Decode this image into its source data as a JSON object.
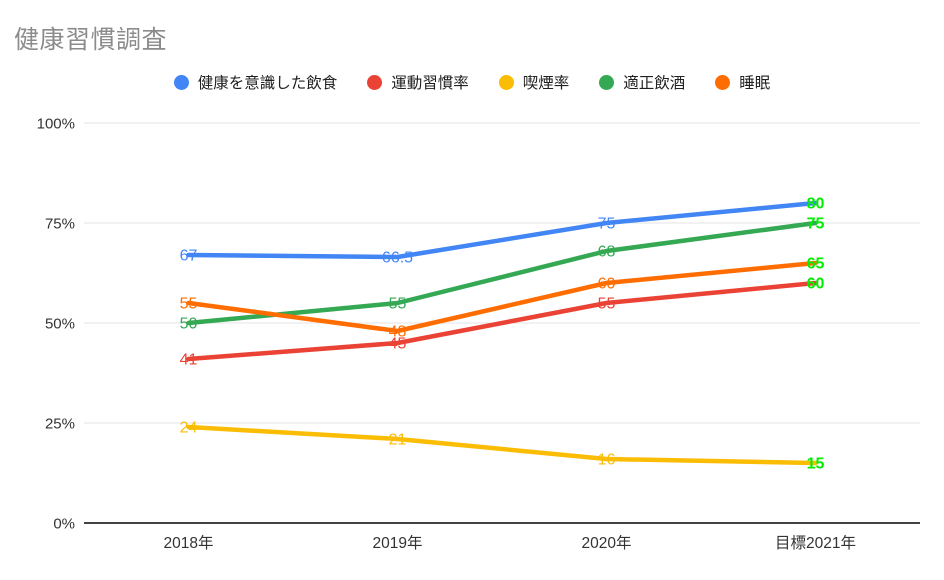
{
  "title": "健康習慣調査",
  "chart_data": {
    "type": "line",
    "title": "健康習慣調査",
    "categories": [
      "2018年",
      "2019年",
      "2020年",
      "目標2021年"
    ],
    "series": [
      {
        "name": "健康を意識した飲食",
        "color": "#4285F4",
        "values": [
          67,
          66.5,
          75,
          80
        ]
      },
      {
        "name": "運動習慣率",
        "color": "#EA4335",
        "values": [
          41,
          45,
          55,
          60
        ]
      },
      {
        "name": "喫煙率",
        "color": "#FBBC04",
        "values": [
          24,
          21,
          16,
          15
        ]
      },
      {
        "name": "適正飲酒",
        "color": "#34A853",
        "values": [
          50,
          55,
          68,
          75
        ]
      },
      {
        "name": "睡眠",
        "color": "#FF6D01",
        "values": [
          55,
          48,
          60,
          65
        ]
      }
    ],
    "y_ticks": [
      "0%",
      "25%",
      "50%",
      "75%",
      "100%"
    ],
    "y_tick_values": [
      0,
      25,
      50,
      75,
      100
    ],
    "ylim": [
      0,
      100
    ],
    "xlabel": "",
    "ylabel": "",
    "grid": true,
    "legend_position": "top",
    "data_labels": true,
    "target_column": {
      "index": 3,
      "label_color": "#00F000",
      "bold": true
    }
  },
  "colors": {
    "title_text": "#8B8B8B",
    "axis_text": "#333333",
    "legend_text": "#212121",
    "gridline": "#E3E3E3",
    "axis_line": "#424242",
    "background": "#FFFFFF"
  }
}
